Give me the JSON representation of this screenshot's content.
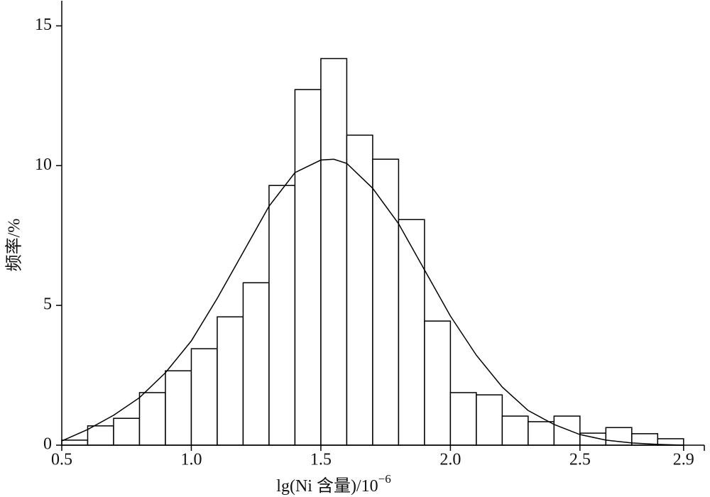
{
  "chart_data": {
    "type": "histogram",
    "ylabel": "频率/%",
    "xlabel": "lg(Ni 含量)/10",
    "xlabel_superscript": "−6",
    "bins": [
      0.5,
      0.6,
      0.7,
      0.8,
      0.9,
      1.0,
      1.1,
      1.2,
      1.3,
      1.4,
      1.5,
      1.6,
      1.7,
      1.8,
      1.9,
      2.0,
      2.1,
      2.2,
      2.3,
      2.4,
      2.5,
      2.6,
      2.7,
      2.8,
      2.9
    ],
    "values": [
      0.18,
      0.69,
      0.96,
      1.88,
      2.66,
      3.45,
      4.59,
      5.81,
      9.29,
      12.72,
      13.83,
      11.09,
      10.23,
      8.07,
      4.44,
      1.88,
      1.8,
      1.04,
      0.84,
      1.04,
      0.43,
      0.63,
      0.41,
      0.23
    ],
    "color": "#ffffff",
    "edgecolor": "#000000",
    "curve": {
      "x": [
        0.5,
        0.6,
        0.7,
        0.8,
        0.9,
        1.0,
        1.1,
        1.2,
        1.3,
        1.4,
        1.5,
        1.55,
        1.6,
        1.7,
        1.8,
        1.9,
        2.0,
        2.1,
        2.2,
        2.3,
        2.4,
        2.5,
        2.6,
        2.7,
        2.8,
        2.9
      ],
      "values": [
        0.15,
        0.56,
        1.07,
        1.7,
        2.59,
        3.73,
        5.25,
        6.9,
        8.55,
        9.75,
        10.2,
        10.23,
        10.08,
        9.19,
        7.92,
        6.27,
        4.62,
        3.22,
        2.08,
        1.24,
        0.74,
        0.38,
        0.18,
        0.08,
        0.03,
        0
      ],
      "color": "#000000"
    },
    "xlim": [
      0.5,
      2.98
    ],
    "ylim": [
      0,
      15.9
    ],
    "xticks": [
      0.5,
      {
        "value": 1,
        "label": "1.0"
      },
      1.5,
      {
        "value": 2,
        "label": "2.0"
      },
      2.5,
      2.9
    ],
    "yticks": [
      0,
      5,
      10,
      15
    ]
  }
}
